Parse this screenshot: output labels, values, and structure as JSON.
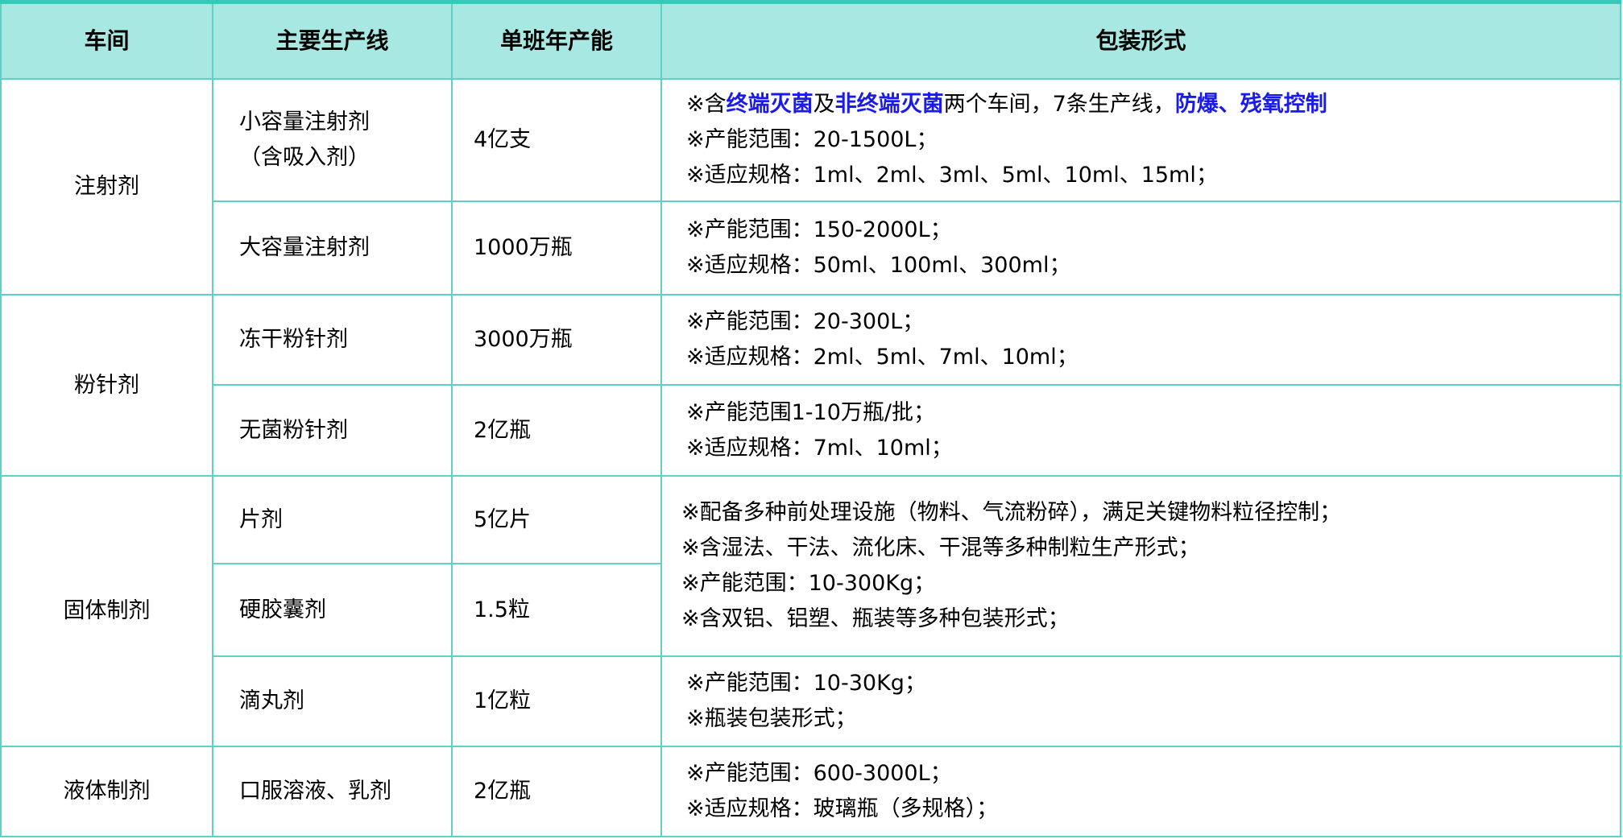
{
  "colors": {
    "header_bg": "#a8e8e2",
    "border": "#5fd0c4",
    "highlight": "#1a1aee"
  },
  "headers": [
    "车间",
    "主要生产线",
    "单班年产能",
    "包装形式"
  ],
  "rows": [
    {
      "workshop": "注射剂",
      "line": [
        "小容量注射剂",
        "（含吸入剂）"
      ],
      "capacity": "4亿支",
      "packaging_first": [
        {
          "t": "※含"
        },
        {
          "t": "终端灭菌",
          "hl": true
        },
        {
          "t": "及"
        },
        {
          "t": "非终端灭菌",
          "hl": true
        },
        {
          "t": "两个车间，7条生产线，"
        },
        {
          "t": "防爆、残氧控制",
          "hl": true
        }
      ],
      "packaging": [
        "※产能范围：20-1500L；",
        "※适应规格：1ml、2ml、3ml、5ml、10ml、15ml；"
      ]
    },
    {
      "line": "大容量注射剂",
      "capacity": "1000万瓶",
      "packaging": [
        "※产能范围：150-2000L；",
        "※适应规格：50ml、100ml、300ml；"
      ]
    },
    {
      "workshop": "粉针剂",
      "line": "冻干粉针剂",
      "capacity": "3000万瓶",
      "packaging": [
        "※产能范围：20-300L；",
        "※适应规格：2ml、5ml、7ml、10ml；"
      ]
    },
    {
      "line": "无菌粉针剂",
      "capacity": "2亿瓶",
      "packaging": [
        "※产能范围1-10万瓶/批；",
        "※适应规格：7ml、10ml；"
      ]
    },
    {
      "workshop": "固体制剂",
      "line": "片剂",
      "capacity": "5亿片",
      "packaging": [
        "※配备多种前处理设施（物料、气流粉碎），满足关键物料粒径控制；",
        "※含湿法、干法、流化床、干混等多种制粒生产形式；",
        "※产能范围：10-300Kg；",
        "※含双铝、铝塑、瓶装等多种包装形式；"
      ]
    },
    {
      "line": "硬胶囊剂",
      "capacity": "1.5粒"
    },
    {
      "line": "滴丸剂",
      "capacity": "1亿粒",
      "packaging": [
        "※产能范围：10-30Kg；",
        "※瓶装包装形式；"
      ]
    },
    {
      "workshop": "液体制剂",
      "line": "口服溶液、乳剂",
      "capacity": "2亿瓶",
      "packaging": [
        "※产能范围：600-3000L；",
        "※适应规格：玻璃瓶（多规格）；"
      ]
    }
  ]
}
